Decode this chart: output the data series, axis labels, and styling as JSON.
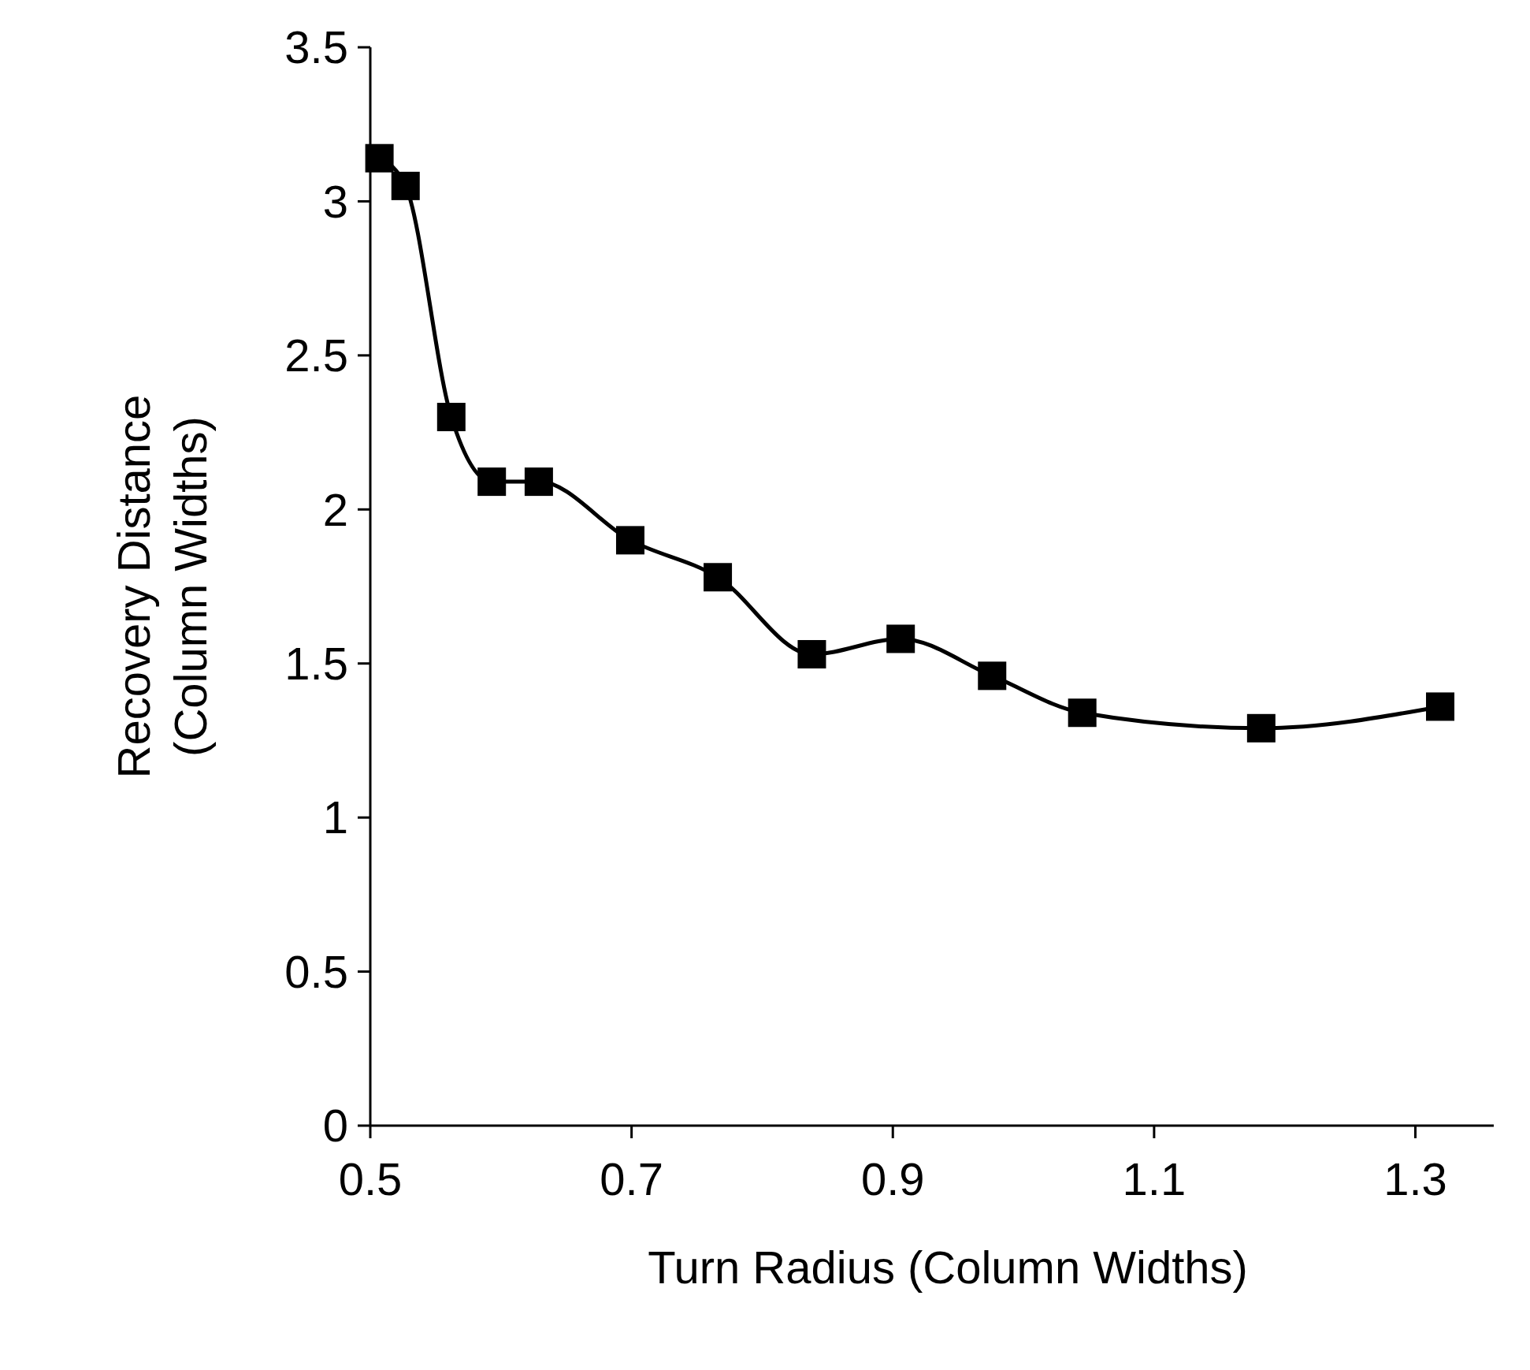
{
  "chart_data": {
    "type": "line",
    "xlabel": "Turn Radius (Column Widths)",
    "ylabel": "Recovery Distance\n(Column Widths)",
    "x": [
      0.507,
      0.527,
      0.562,
      0.593,
      0.629,
      0.699,
      0.766,
      0.838,
      0.906,
      0.976,
      1.045,
      1.182,
      1.319
    ],
    "series": [
      {
        "color": "#000000",
        "values": [
          3.14,
          3.05,
          2.3,
          2.09,
          2.09,
          1.9,
          1.78,
          1.53,
          1.58,
          1.46,
          1.34,
          1.29,
          1.36
        ]
      }
    ],
    "xlim": [
      0.5,
      1.36
    ],
    "xticks": [
      0.5,
      0.7,
      0.9,
      1.1,
      1.3
    ],
    "ylim": [
      0,
      3.5
    ],
    "yticks": [
      0,
      0.5,
      1,
      1.5,
      2,
      2.5,
      3,
      3.5
    ],
    "marker": "square",
    "line_style": "solid"
  }
}
